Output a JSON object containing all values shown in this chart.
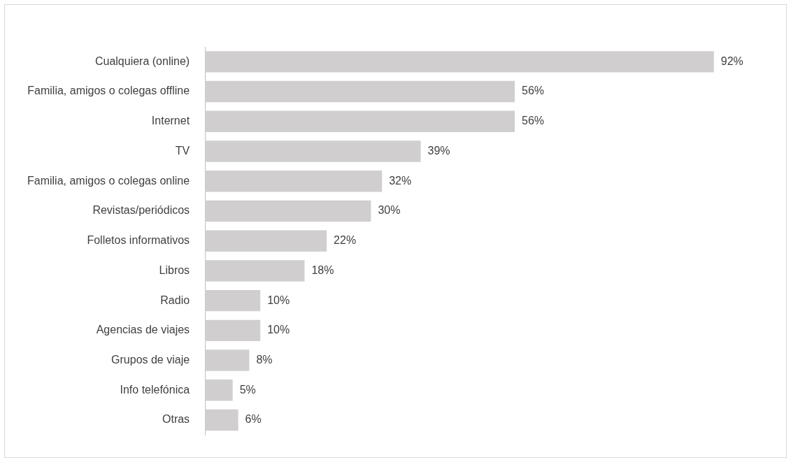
{
  "chart_data": {
    "type": "bar",
    "orientation": "horizontal",
    "categories": [
      "Cualquiera (online)",
      "Familia, amigos o colegas offline",
      "Internet",
      "TV",
      "Familia, amigos o colegas online",
      "Revistas/periódicos",
      "Folletos informativos",
      "Libros",
      "Radio",
      "Agencias de viajes",
      "Grupos de viaje",
      "Info telefónica",
      "Otras"
    ],
    "values": [
      92,
      56,
      56,
      39,
      32,
      30,
      22,
      18,
      10,
      10,
      8,
      5,
      6
    ],
    "value_labels": [
      "92%",
      "56%",
      "56%",
      "39%",
      "32%",
      "30%",
      "22%",
      "18%",
      "10%",
      "10%",
      "8%",
      "5%",
      "6%"
    ],
    "color": "#d0cece",
    "tick_labels": "y"
  }
}
